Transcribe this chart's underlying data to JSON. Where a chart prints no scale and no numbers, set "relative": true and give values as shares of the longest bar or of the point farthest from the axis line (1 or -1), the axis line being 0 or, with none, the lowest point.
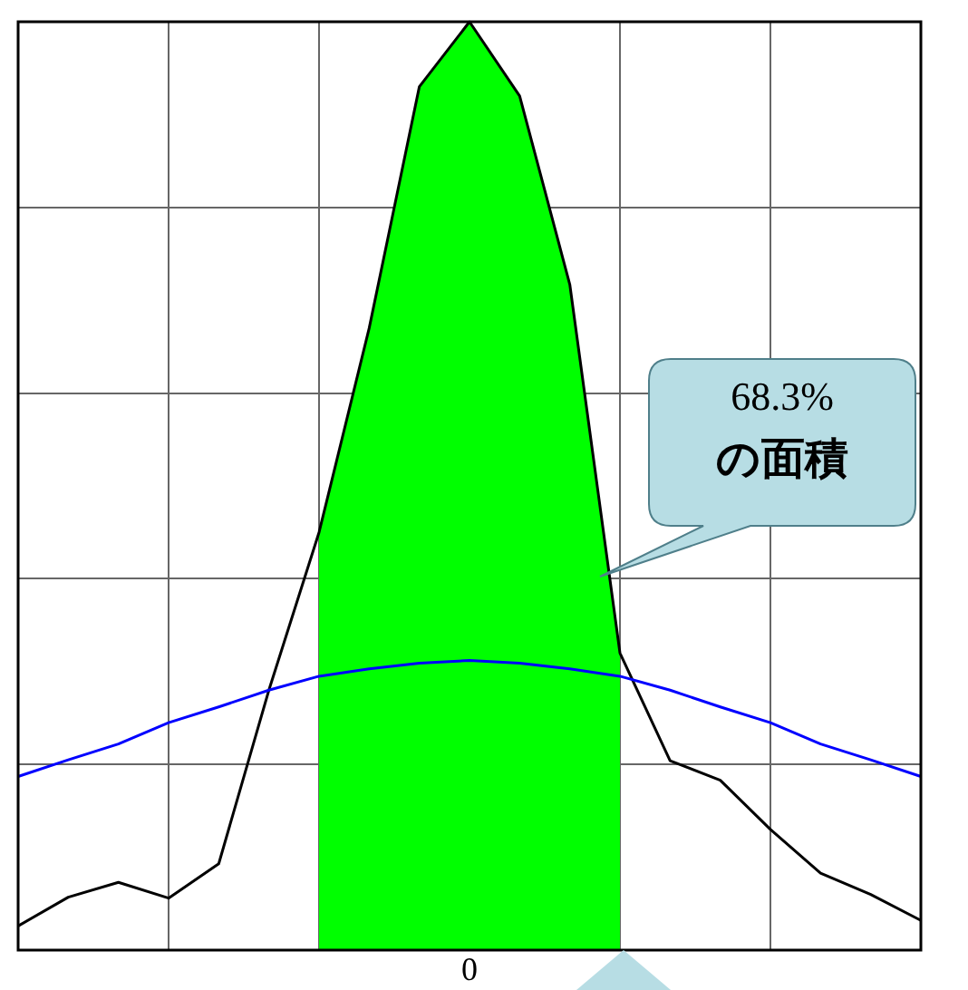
{
  "chart_data": {
    "type": "line",
    "relative": true,
    "grid": true,
    "marker": "none",
    "categories": [
      null,
      null,
      null,
      null,
      null,
      null,
      null,
      null,
      null,
      null,
      null,
      null,
      null,
      null,
      null,
      null,
      null,
      null,
      null
    ],
    "series": [
      {
        "type": "area",
        "color": "#00ff00",
        "values": [
          null,
          null,
          null,
          null,
          null,
          null,
          0.45,
          0.67,
          0.93,
          1,
          0.92,
          0.717,
          0.32,
          null,
          null,
          null,
          null,
          null,
          null
        ]
      },
      {
        "color": "#000000",
        "values": [
          0.026,
          0.057,
          0.073,
          0.056,
          0.093,
          0.28,
          0.45,
          0.67,
          0.93,
          1,
          0.92,
          0.717,
          0.32,
          0.204,
          0.183,
          0.13,
          0.083,
          0.06,
          0.032
        ]
      },
      {
        "color": "#0000ff",
        "values": [
          0.187,
          0.205,
          0.222,
          0.245,
          0.262,
          0.28,
          0.295,
          0.303,
          0.309,
          0.312,
          0.309,
          0.303,
          0.295,
          0.28,
          0.262,
          0.245,
          0.222,
          0.205,
          0.187
        ]
      }
    ],
    "annotations": [
      "68.3%\nの面積",
      "0"
    ]
  }
}
